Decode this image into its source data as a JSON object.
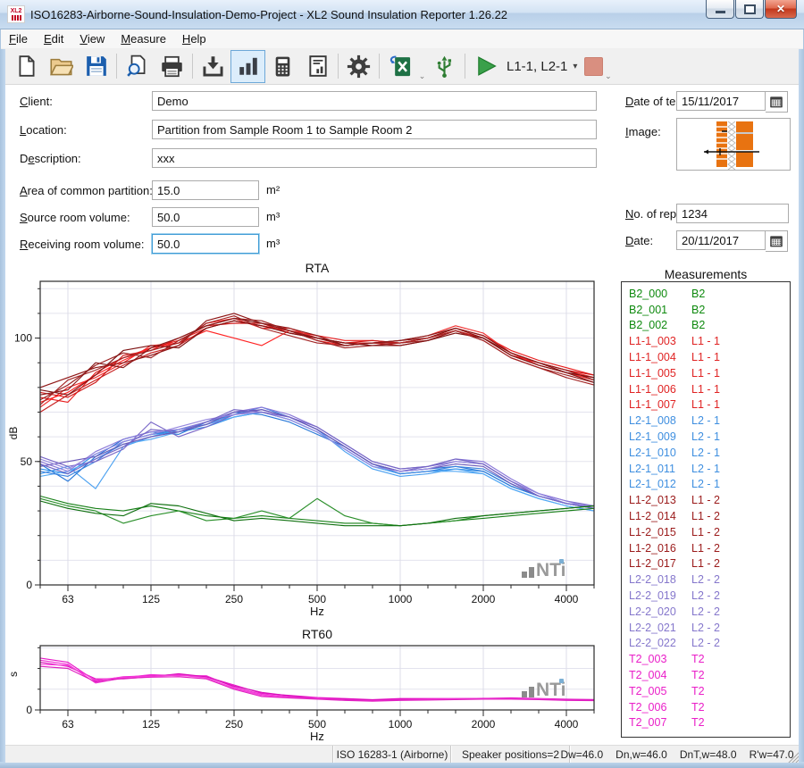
{
  "window": {
    "title": "ISO16283-Airborne-Sound-Insulation-Demo-Project - XL2 Sound Insulation Reporter 1.26.22",
    "icon_text": "XL2"
  },
  "icons": {
    "close": "✕",
    "dropdown": "▾",
    "overflow": "⌄"
  },
  "menu": {
    "items": [
      {
        "u": "F",
        "rest": "ile"
      },
      {
        "u": "E",
        "rest": "dit"
      },
      {
        "u": "V",
        "rest": "iew"
      },
      {
        "u": "M",
        "rest": "easure"
      },
      {
        "u": "H",
        "rest": "elp"
      }
    ]
  },
  "toolbar": {
    "selector_label": "L1-1, L2-1"
  },
  "form": {
    "client": {
      "pre": "",
      "u": "C",
      "rest": "lient:",
      "value": "Demo"
    },
    "location": {
      "pre": "",
      "u": "L",
      "rest": "ocation:",
      "value": "Partition from Sample Room 1 to Sample Room 2"
    },
    "description": {
      "pre": "D",
      "u": "e",
      "rest": "scription:",
      "value": "xxx"
    },
    "area": {
      "pre": "",
      "u": "A",
      "rest": "rea of common partition:",
      "value": "15.0",
      "unit": "m²"
    },
    "source": {
      "pre": "",
      "u": "S",
      "rest": "ource room volume:",
      "value": "50.0",
      "unit": "m³"
    },
    "receiving": {
      "pre": "",
      "u": "R",
      "rest": "eceiving room volume:",
      "value": "50.0",
      "unit": "m³"
    },
    "date_of_test": {
      "pre": "",
      "u": "D",
      "rest": "ate of test:",
      "value": "15/11/2017"
    },
    "image": {
      "pre": "",
      "u": "I",
      "rest": "mage:"
    },
    "no_of_report": {
      "pre": "",
      "u": "N",
      "rest": "o. of report:",
      "value": "1234"
    },
    "date": {
      "pre": "",
      "u": "D",
      "rest": "ate:",
      "value": "20/11/2017"
    }
  },
  "watermark": "NTi",
  "measurements": {
    "title": "Measurements",
    "colors": {
      "B2": "#0f8a0f",
      "L1 - 1": "#e02424",
      "L2 - 1": "#3f8fe0",
      "L1 - 2": "#9b1b1b",
      "L2 - 2": "#8577cc",
      "T2": "#ea1ec8"
    },
    "items": [
      {
        "id": "B2_000",
        "group": "B2"
      },
      {
        "id": "B2_001",
        "group": "B2"
      },
      {
        "id": "B2_002",
        "group": "B2"
      },
      {
        "id": "L1-1_003",
        "group": "L1 - 1"
      },
      {
        "id": "L1-1_004",
        "group": "L1 - 1"
      },
      {
        "id": "L1-1_005",
        "group": "L1 - 1"
      },
      {
        "id": "L1-1_006",
        "group": "L1 - 1"
      },
      {
        "id": "L1-1_007",
        "group": "L1 - 1"
      },
      {
        "id": "L2-1_008",
        "group": "L2 - 1"
      },
      {
        "id": "L2-1_009",
        "group": "L2 - 1"
      },
      {
        "id": "L2-1_010",
        "group": "L2 - 1"
      },
      {
        "id": "L2-1_011",
        "group": "L2 - 1"
      },
      {
        "id": "L2-1_012",
        "group": "L2 - 1"
      },
      {
        "id": "L1-2_013",
        "group": "L1 - 2"
      },
      {
        "id": "L1-2_014",
        "group": "L1 - 2"
      },
      {
        "id": "L1-2_015",
        "group": "L1 - 2"
      },
      {
        "id": "L1-2_016",
        "group": "L1 - 2"
      },
      {
        "id": "L1-2_017",
        "group": "L1 - 2"
      },
      {
        "id": "L2-2_018",
        "group": "L2 - 2"
      },
      {
        "id": "L2-2_019",
        "group": "L2 - 2"
      },
      {
        "id": "L2-2_020",
        "group": "L2 - 2"
      },
      {
        "id": "L2-2_021",
        "group": "L2 - 2"
      },
      {
        "id": "L2-2_022",
        "group": "L2 - 2"
      },
      {
        "id": "T2_003",
        "group": "T2"
      },
      {
        "id": "T2_004",
        "group": "T2"
      },
      {
        "id": "T2_005",
        "group": "T2"
      },
      {
        "id": "T2_006",
        "group": "T2"
      },
      {
        "id": "T2_007",
        "group": "T2"
      }
    ]
  },
  "chart_data": [
    {
      "id": "rta",
      "type": "line",
      "title": "RTA",
      "xlabel": "Hz",
      "ylabel": "dB",
      "x_bands": [
        50,
        63,
        80,
        100,
        125,
        160,
        200,
        250,
        315,
        400,
        500,
        630,
        800,
        1000,
        1250,
        1600,
        2000,
        2500,
        3150,
        4000,
        5000
      ],
      "x_tick_labels": [
        "63",
        "125",
        "250",
        "500",
        "1000",
        "2000",
        "4000"
      ],
      "x_tick_band_index": [
        1,
        4,
        7,
        10,
        13,
        16,
        19
      ],
      "ylim": [
        0,
        123
      ],
      "yticks": [
        0,
        50,
        100
      ],
      "grid": true,
      "legend": "none",
      "series": [
        {
          "name": "L1-1_003",
          "group": "L1 - 1",
          "color": "#e81c1c",
          "values": [
            76,
            74,
            86,
            92,
            96,
            99,
            104,
            107,
            105,
            103,
            101,
            99,
            99,
            98,
            100,
            104,
            101,
            95,
            91,
            88,
            85
          ]
        },
        {
          "name": "L1-1_004",
          "group": "L1 - 1",
          "color": "#f03030",
          "values": [
            72,
            80,
            84,
            90,
            97,
            98,
            106,
            108,
            104,
            104,
            100,
            98,
            98,
            99,
            101,
            105,
            102,
            94,
            90,
            87,
            84
          ]
        },
        {
          "name": "L1-1_005",
          "group": "L1 - 1",
          "color": "#d01818",
          "values": [
            78,
            76,
            82,
            93,
            95,
            100,
            105,
            106,
            106,
            102,
            100,
            98,
            99,
            98,
            100,
            103,
            100,
            93,
            90,
            87,
            85
          ]
        },
        {
          "name": "L1-1_006",
          "group": "L1 - 1",
          "color": "#ff2424",
          "values": [
            74,
            78,
            85,
            91,
            96,
            98,
            103,
            100,
            97,
            103,
            99,
            97,
            98,
            98,
            100,
            104,
            101,
            94,
            89,
            86,
            83
          ]
        },
        {
          "name": "L1-1_007",
          "group": "L1 - 1",
          "color": "#c81f1f",
          "values": [
            70,
            77,
            83,
            89,
            94,
            97,
            104,
            107,
            105,
            103,
            100,
            98,
            98,
            97,
            99,
            103,
            100,
            93,
            89,
            86,
            84
          ]
        },
        {
          "name": "L1-2_013",
          "group": "L1 - 2",
          "color": "#8f1616",
          "values": [
            80,
            84,
            88,
            90,
            93,
            97,
            107,
            110,
            106,
            104,
            101,
            97,
            98,
            99,
            100,
            104,
            100,
            94,
            90,
            87,
            83
          ]
        },
        {
          "name": "L1-2_014",
          "group": "L1 - 2",
          "color": "#9c2020",
          "values": [
            75,
            81,
            89,
            94,
            92,
            99,
            105,
            108,
            107,
            103,
            99,
            96,
            97,
            98,
            99,
            103,
            99,
            92,
            88,
            85,
            82
          ]
        },
        {
          "name": "L1-2_015",
          "group": "L1 - 2",
          "color": "#7d1212",
          "values": [
            79,
            77,
            85,
            95,
            97,
            96,
            104,
            107,
            105,
            102,
            100,
            98,
            97,
            97,
            99,
            102,
            100,
            93,
            89,
            86,
            84
          ]
        },
        {
          "name": "L1-2_016",
          "group": "L1 - 2",
          "color": "#a32525",
          "values": [
            73,
            83,
            87,
            92,
            95,
            98,
            106,
            109,
            104,
            101,
            98,
            97,
            98,
            98,
            100,
            103,
            99,
            92,
            88,
            84,
            81
          ]
        },
        {
          "name": "L1-2_017",
          "group": "L1 - 2",
          "color": "#871a1a",
          "values": [
            77,
            79,
            90,
            88,
            96,
            100,
            105,
            108,
            106,
            103,
            100,
            97,
            98,
            99,
            101,
            104,
            101,
            94,
            90,
            86,
            82
          ]
        },
        {
          "name": "L2-1_008",
          "group": "L2 - 1",
          "color": "#2f8fe8",
          "values": [
            47,
            45,
            53,
            58,
            61,
            62,
            64,
            68,
            70,
            67,
            62,
            55,
            48,
            45,
            46,
            47,
            46,
            40,
            36,
            33,
            31
          ]
        },
        {
          "name": "L2-1_009",
          "group": "L2 - 1",
          "color": "#4aa0f0",
          "values": [
            45,
            48,
            39,
            56,
            60,
            63,
            65,
            69,
            71,
            68,
            63,
            54,
            47,
            44,
            45,
            47,
            45,
            39,
            35,
            32,
            30
          ]
        },
        {
          "name": "L2-1_010",
          "group": "L2 - 1",
          "color": "#2878d8",
          "values": [
            49,
            42,
            52,
            59,
            62,
            61,
            66,
            70,
            69,
            66,
            61,
            56,
            49,
            46,
            47,
            48,
            46,
            40,
            36,
            33,
            31
          ]
        },
        {
          "name": "L2-1_011",
          "group": "L2 - 1",
          "color": "#55aaf5",
          "values": [
            44,
            46,
            51,
            57,
            59,
            62,
            65,
            68,
            70,
            67,
            62,
            55,
            48,
            45,
            46,
            46,
            45,
            39,
            35,
            32,
            30
          ]
        },
        {
          "name": "L2-1_012",
          "group": "L2 - 1",
          "color": "#3b82dd",
          "values": [
            46,
            44,
            50,
            58,
            61,
            63,
            66,
            69,
            72,
            68,
            63,
            56,
            49,
            45,
            46,
            48,
            47,
            41,
            36,
            33,
            31
          ]
        },
        {
          "name": "L2-2_018",
          "group": "L2 - 2",
          "color": "#7a68c8",
          "values": [
            52,
            48,
            50,
            55,
            66,
            60,
            64,
            69,
            71,
            68,
            63,
            56,
            49,
            46,
            48,
            50,
            49,
            42,
            37,
            34,
            32
          ]
        },
        {
          "name": "L2-2_019",
          "group": "L2 - 2",
          "color": "#8a78d8",
          "values": [
            50,
            46,
            54,
            59,
            62,
            63,
            66,
            70,
            72,
            69,
            64,
            57,
            50,
            47,
            48,
            51,
            50,
            43,
            37,
            34,
            31
          ]
        },
        {
          "name": "L2-2_020",
          "group": "L2 - 2",
          "color": "#6a58b8",
          "values": [
            48,
            50,
            52,
            57,
            60,
            62,
            65,
            70,
            71,
            68,
            63,
            56,
            49,
            46,
            47,
            49,
            48,
            41,
            36,
            33,
            31
          ]
        },
        {
          "name": "L2-2_021",
          "group": "L2 - 2",
          "color": "#9486de",
          "values": [
            51,
            47,
            53,
            58,
            61,
            64,
            67,
            69,
            70,
            67,
            62,
            55,
            48,
            46,
            47,
            50,
            49,
            42,
            37,
            33,
            32
          ]
        },
        {
          "name": "L2-2_022",
          "group": "L2 - 2",
          "color": "#7565c5",
          "values": [
            49,
            45,
            51,
            56,
            63,
            62,
            66,
            71,
            70,
            68,
            64,
            57,
            50,
            47,
            48,
            51,
            49,
            42,
            36,
            33,
            31
          ]
        },
        {
          "name": "B2_000",
          "group": "B2",
          "color": "#188018",
          "values": [
            36,
            33,
            31,
            30,
            32,
            30,
            28,
            27,
            28,
            27,
            26,
            25,
            25,
            24,
            25,
            26,
            27,
            28,
            29,
            30,
            31
          ]
        },
        {
          "name": "B2_001",
          "group": "B2",
          "color": "#2a8f2a",
          "values": [
            35,
            32,
            30,
            25,
            28,
            30,
            26,
            27,
            30,
            27,
            35,
            28,
            25,
            24,
            25,
            26,
            28,
            29,
            30,
            31,
            32
          ]
        },
        {
          "name": "B2_002",
          "group": "B2",
          "color": "#0f700f",
          "values": [
            34,
            31,
            29,
            28,
            33,
            32,
            29,
            26,
            27,
            26,
            25,
            24,
            24,
            24,
            25,
            27,
            28,
            29,
            30,
            31,
            32
          ]
        }
      ]
    },
    {
      "id": "rt60",
      "type": "line",
      "title": "RT60",
      "xlabel": "Hz",
      "ylabel": "s",
      "x_bands": [
        50,
        63,
        80,
        100,
        125,
        160,
        200,
        250,
        315,
        400,
        500,
        630,
        800,
        1000,
        1250,
        1600,
        2000,
        2500,
        3150,
        4000,
        5000
      ],
      "x_tick_labels": [
        "63",
        "125",
        "250",
        "500",
        "1000",
        "2000",
        "4000"
      ],
      "x_tick_band_index": [
        1,
        4,
        7,
        10,
        13,
        16,
        19
      ],
      "ylim": [
        0,
        3.1
      ],
      "yticks": [
        0
      ],
      "grid": true,
      "legend": "none",
      "series": [
        {
          "name": "T2_003",
          "group": "T2",
          "color": "#e818c8",
          "values": [
            2.5,
            2.3,
            1.4,
            1.6,
            1.65,
            1.7,
            1.6,
            1.2,
            0.8,
            0.7,
            0.6,
            0.55,
            0.5,
            0.55,
            0.55,
            0.55,
            0.55,
            0.58,
            0.55,
            0.52,
            0.5
          ]
        },
        {
          "name": "T2_004",
          "group": "T2",
          "color": "#f02cd4",
          "values": [
            2.4,
            2.2,
            1.3,
            1.55,
            1.7,
            1.65,
            1.65,
            1.1,
            0.75,
            0.65,
            0.58,
            0.5,
            0.45,
            0.5,
            0.52,
            0.54,
            0.56,
            0.56,
            0.54,
            0.5,
            0.48
          ]
        },
        {
          "name": "T2_005",
          "group": "T2",
          "color": "#d810ba",
          "values": [
            2.3,
            2.1,
            1.5,
            1.5,
            1.6,
            1.75,
            1.6,
            1.15,
            0.85,
            0.68,
            0.56,
            0.52,
            0.48,
            0.52,
            0.5,
            0.52,
            0.54,
            0.55,
            0.52,
            0.5,
            0.5
          ]
        },
        {
          "name": "T2_006",
          "group": "T2",
          "color": "#f840dc",
          "values": [
            2.2,
            2.15,
            1.45,
            1.58,
            1.62,
            1.68,
            1.55,
            1.05,
            0.7,
            0.6,
            0.55,
            0.48,
            0.44,
            0.48,
            0.5,
            0.52,
            0.53,
            0.54,
            0.52,
            0.48,
            0.46
          ]
        },
        {
          "name": "T2_007",
          "group": "T2",
          "color": "#e020c0",
          "values": [
            2.1,
            2.0,
            1.35,
            1.52,
            1.58,
            1.6,
            1.5,
            1.0,
            0.65,
            0.58,
            0.52,
            0.46,
            0.42,
            0.46,
            0.48,
            0.5,
            0.52,
            0.52,
            0.5,
            0.46,
            0.45
          ]
        }
      ]
    }
  ],
  "status": {
    "iso": "ISO 16283-1 (Airborne)",
    "speakers": "Speaker positions=2",
    "metrics": [
      "Dw=46.0",
      "Dn,w=46.0",
      "DnT,w=48.0",
      "R'w=47.0"
    ]
  }
}
